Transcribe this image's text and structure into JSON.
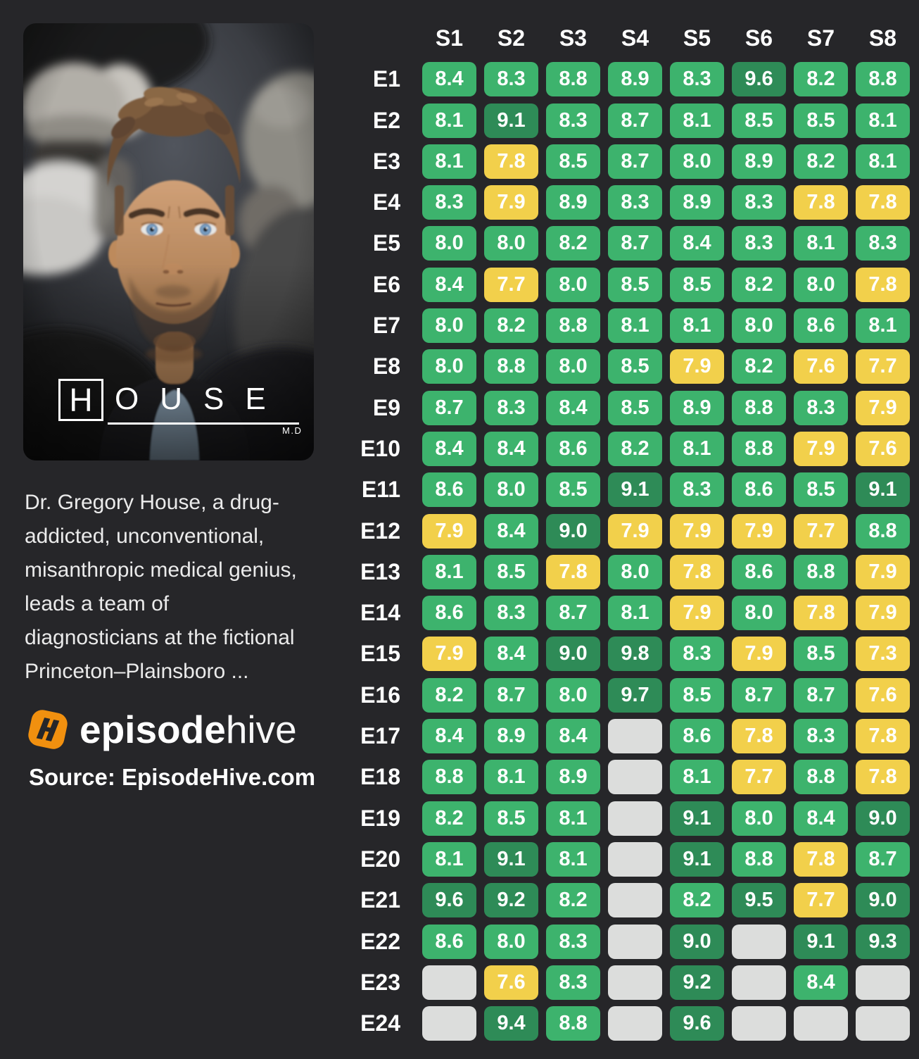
{
  "page": {
    "background": "#262629"
  },
  "poster": {
    "title_h": "H",
    "title_rest": "OUSE",
    "title_sub": "M.D"
  },
  "show": {
    "description": "Dr. Gregory House, a drug-\naddicted, unconventional,\nmisanthropic medical genius,\nleads a team of\ndiagnosticians at the fictional\nPrinceton–Plainsboro ..."
  },
  "brand": {
    "logo_bold": "episode",
    "logo_light": "hive",
    "logo_icon": "episodehive-hive-icon",
    "icon_color": "#f1900f"
  },
  "source": {
    "label": "Source: EpisodeHive.com"
  },
  "chart_data": {
    "type": "heatmap",
    "columns": [
      "S1",
      "S2",
      "S3",
      "S4",
      "S5",
      "S6",
      "S7",
      "S8"
    ],
    "rows": [
      "E1",
      "E2",
      "E3",
      "E4",
      "E5",
      "E6",
      "E7",
      "E8",
      "E9",
      "E10",
      "E11",
      "E12",
      "E13",
      "E14",
      "E15",
      "E16",
      "E17",
      "E18",
      "E19",
      "E20",
      "E21",
      "E22",
      "E23",
      "E24"
    ],
    "values": [
      [
        8.4,
        8.3,
        8.8,
        8.9,
        8.3,
        9.6,
        8.2,
        8.8
      ],
      [
        8.1,
        9.1,
        8.3,
        8.7,
        8.1,
        8.5,
        8.5,
        8.1
      ],
      [
        8.1,
        7.8,
        8.5,
        8.7,
        8.0,
        8.9,
        8.2,
        8.1
      ],
      [
        8.3,
        7.9,
        8.9,
        8.3,
        8.9,
        8.3,
        7.8,
        7.8
      ],
      [
        8.0,
        8.0,
        8.2,
        8.7,
        8.4,
        8.3,
        8.1,
        8.3
      ],
      [
        8.4,
        7.7,
        8.0,
        8.5,
        8.5,
        8.2,
        8.0,
        7.8
      ],
      [
        8.0,
        8.2,
        8.8,
        8.1,
        8.1,
        8.0,
        8.6,
        8.1
      ],
      [
        8.0,
        8.8,
        8.0,
        8.5,
        7.9,
        8.2,
        7.6,
        7.7
      ],
      [
        8.7,
        8.3,
        8.4,
        8.5,
        8.9,
        8.8,
        8.3,
        7.9
      ],
      [
        8.4,
        8.4,
        8.6,
        8.2,
        8.1,
        8.8,
        7.9,
        7.6
      ],
      [
        8.6,
        8.0,
        8.5,
        9.1,
        8.3,
        8.6,
        8.5,
        9.1
      ],
      [
        7.9,
        8.4,
        9.0,
        7.9,
        7.9,
        7.9,
        7.7,
        8.8
      ],
      [
        8.1,
        8.5,
        7.8,
        8.0,
        7.8,
        8.6,
        8.8,
        7.9
      ],
      [
        8.6,
        8.3,
        8.7,
        8.1,
        7.9,
        8.0,
        7.8,
        7.9
      ],
      [
        7.9,
        8.4,
        9.0,
        9.8,
        8.3,
        7.9,
        8.5,
        7.3
      ],
      [
        8.2,
        8.7,
        8.0,
        9.7,
        8.5,
        8.7,
        8.7,
        7.6
      ],
      [
        8.4,
        8.9,
        8.4,
        null,
        8.6,
        7.8,
        8.3,
        7.8
      ],
      [
        8.8,
        8.1,
        8.9,
        null,
        8.1,
        7.7,
        8.8,
        7.8
      ],
      [
        8.2,
        8.5,
        8.1,
        null,
        9.1,
        8.0,
        8.4,
        9.0
      ],
      [
        8.1,
        9.1,
        8.1,
        null,
        9.1,
        8.8,
        7.8,
        8.7
      ],
      [
        9.6,
        9.2,
        8.2,
        null,
        8.2,
        9.5,
        7.7,
        9.0
      ],
      [
        8.6,
        8.0,
        8.3,
        null,
        9.0,
        null,
        9.1,
        9.3
      ],
      [
        null,
        7.6,
        8.3,
        null,
        9.2,
        null,
        8.4,
        null
      ],
      [
        null,
        9.4,
        8.8,
        null,
        9.6,
        null,
        null,
        null
      ]
    ],
    "colors": {
      "high": "#2e8b57",
      "mid": "#3db36d",
      "low": "#f2d04b",
      "missing": "#dcdddc",
      "value_text": "#ffffff"
    },
    "thresholds": {
      "high_min": 9.0,
      "low_max": 7.9
    },
    "legend_position": "none",
    "grid": false
  }
}
